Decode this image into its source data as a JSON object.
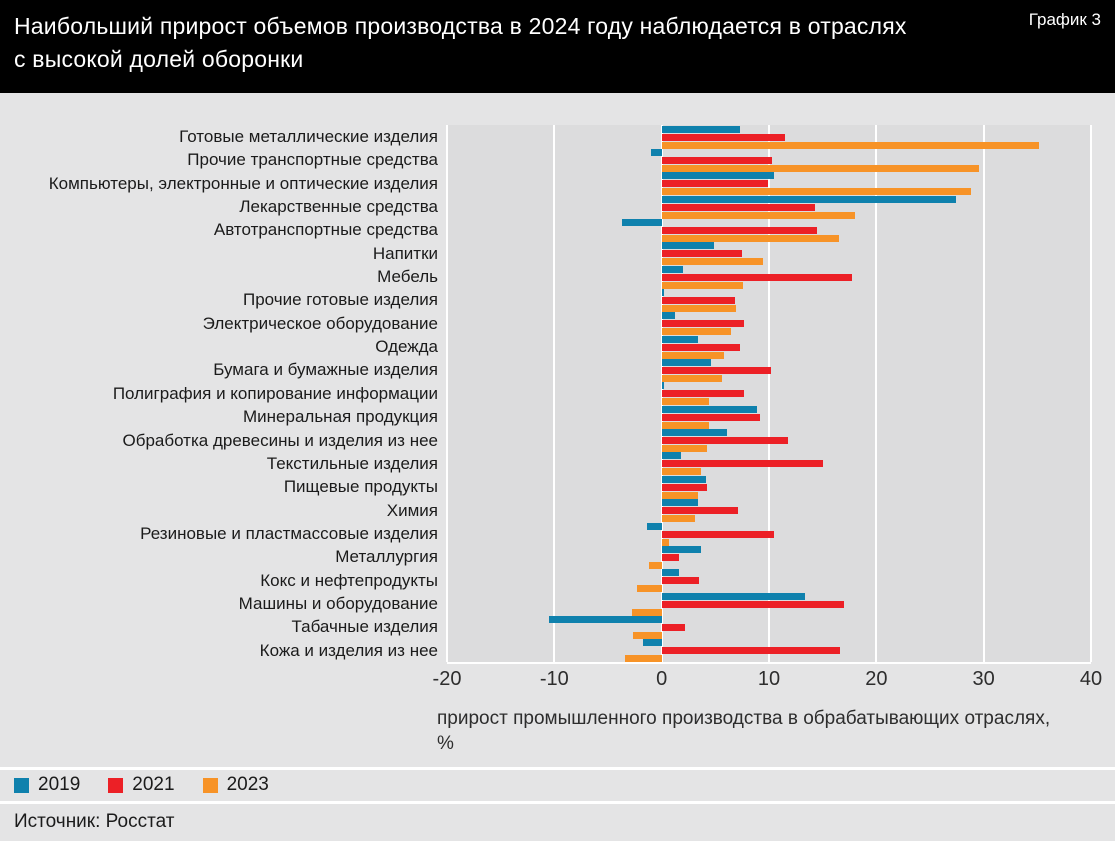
{
  "header": {
    "title_line1": "Наибольший прирост объемов производства в 2024 году наблюдается в отраслях",
    "title_line2": "с высокой долей оборонки",
    "corner_label": "График 3"
  },
  "footer": {
    "source": "Источник: Росстат"
  },
  "colors": {
    "header_bg": "#000000",
    "panel_bg": "#e4e4e5",
    "plot_bg": "#dcdcdd",
    "gridline": "#ffffff",
    "series_2019": "#0f81ad",
    "series_2021": "#ec2026",
    "series_2023": "#f79327"
  },
  "chart_data": {
    "type": "bar",
    "orientation": "horizontal",
    "title": "Наибольший прирост объемов производства в 2024 году наблюдается в отраслях с высокой долей оборонки",
    "xlabel_line1": "прирост промышленного производства в обрабатывающих отраслях,",
    "xlabel_line2": "%",
    "xlim": [
      -20,
      40
    ],
    "xticks": [
      -20,
      -10,
      0,
      10,
      20,
      30,
      40
    ],
    "grid": "vertical-white-lines",
    "legend_position": "bottom-left",
    "categories": [
      "Готовые металлические изделия",
      "Прочие транспортные средства",
      "Компьютеры, электронные и оптические изделия",
      "Лекарственные средства",
      "Автотранспортные средства",
      "Напитки",
      "Мебель",
      "Прочие готовые изделия",
      "Электрическое оборудование",
      "Одежда",
      "Бумага и бумажные изделия",
      "Полиграфия и копирование информации",
      "Минеральная продукция",
      "Обработка древесины и изделия из нее",
      "Текстильные изделия",
      "Пищевые продукты",
      "Химия",
      "Резиновые и пластмассовые изделия",
      "Металлургия",
      "Кокс и нефтепродукты",
      "Машины и оборудование",
      "Табачные изделия",
      "Кожа и изделия из нее"
    ],
    "series": [
      {
        "name": "2019",
        "color": "#0f81ad",
        "values": [
          7.3,
          -1.0,
          10.5,
          27.4,
          -3.7,
          4.9,
          2.0,
          0.2,
          1.2,
          3.4,
          4.6,
          0.2,
          8.9,
          6.1,
          1.8,
          4.1,
          3.4,
          -1.4,
          3.7,
          1.6,
          13.4,
          -10.5,
          -1.7
        ]
      },
      {
        "name": "2021",
        "color": "#ec2026",
        "values": [
          11.5,
          10.3,
          9.9,
          14.3,
          14.5,
          7.5,
          17.7,
          6.8,
          7.7,
          7.3,
          10.2,
          7.7,
          9.2,
          11.8,
          15.0,
          4.2,
          7.1,
          10.5,
          1.6,
          3.5,
          17.0,
          2.2,
          16.6
        ]
      },
      {
        "name": "2023",
        "color": "#f79327",
        "values": [
          35.2,
          29.6,
          28.8,
          18.0,
          16.5,
          9.4,
          7.6,
          6.9,
          6.5,
          5.8,
          5.6,
          4.4,
          4.4,
          4.2,
          3.7,
          3.4,
          3.1,
          0.7,
          -1.2,
          -2.3,
          -2.8,
          -2.7,
          -3.4
        ]
      }
    ]
  }
}
